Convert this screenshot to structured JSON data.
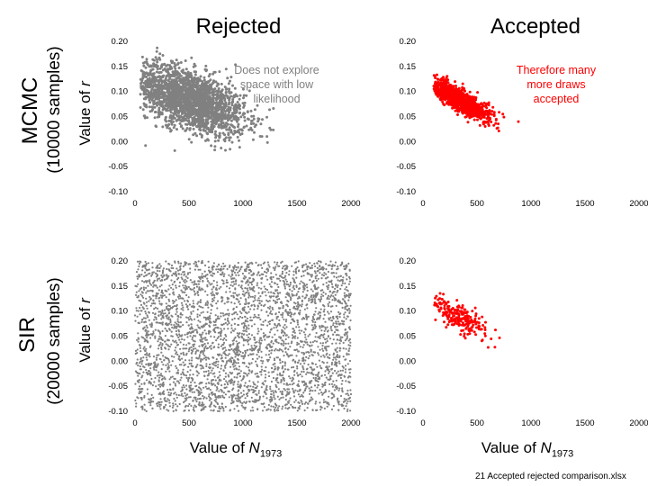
{
  "columns": {
    "rejected": "Rejected",
    "accepted": "Accepted"
  },
  "rows": {
    "mcmc": {
      "label": "MCMC",
      "samples": "(10000 samples)"
    },
    "sir": {
      "label": "SIR",
      "samples": "(20000 samples)"
    }
  },
  "axis": {
    "ylabel_prefix": "Value of ",
    "ylabel_var": "r",
    "xlabel_prefix": "Value of ",
    "xlabel_var": "N",
    "xlabel_sub": "1973"
  },
  "annotations": {
    "mcmc_rejected": [
      "Does not explore",
      "space with low",
      "likelihood"
    ],
    "mcmc_accepted": [
      "Therefore many",
      "more draws",
      "accepted"
    ]
  },
  "footer": "21 Accepted rejected comparison.xlsx",
  "colors": {
    "rejected": "#808080",
    "accepted": "#ff0000",
    "annot_rejected": "#808080",
    "annot_accepted": "#ff0000"
  },
  "chart_data": [
    {
      "id": "mcmc_rejected",
      "type": "scatter",
      "color": "#808080",
      "xlim": [
        0,
        2000
      ],
      "ylim": [
        -0.1,
        0.2
      ],
      "xticks": [
        "0",
        "500",
        "1000",
        "1500",
        "2000"
      ],
      "yticks": [
        "0.20",
        "0.15",
        "0.10",
        "0.05",
        "0.00",
        "-0.05",
        "-0.10"
      ],
      "cloud": {
        "n": 2200,
        "center": [
          500,
          0.085
        ],
        "spread": [
          260,
          0.035
        ],
        "correlation": -0.55,
        "x_range": [
          50,
          1320
        ],
        "y_range": [
          -0.02,
          0.19
        ]
      },
      "points": []
    },
    {
      "id": "mcmc_accepted",
      "type": "scatter",
      "color": "#ff0000",
      "xlim": [
        0,
        2000
      ],
      "ylim": [
        -0.1,
        0.2
      ],
      "xticks": [
        "0",
        "500",
        "1000",
        "1500",
        "2000"
      ],
      "yticks": [
        "0.20",
        "0.15",
        "0.10",
        "0.05",
        "0.00",
        "-0.05",
        "-0.10"
      ],
      "cloud": {
        "n": 900,
        "center": [
          330,
          0.085
        ],
        "spread": [
          160,
          0.022
        ],
        "correlation": -0.85,
        "x_range": [
          100,
          1080
        ],
        "y_range": [
          0.02,
          0.165
        ]
      },
      "points": []
    },
    {
      "id": "sir_rejected",
      "type": "scatter",
      "color": "#808080",
      "xlim": [
        0,
        2000
      ],
      "ylim": [
        -0.1,
        0.2
      ],
      "xticks": [
        "0",
        "500",
        "1000",
        "1500",
        "2000"
      ],
      "yticks": [
        "0.20",
        "0.15",
        "0.10",
        "0.05",
        "0.00",
        "-0.05",
        "-0.10"
      ],
      "cloud": {
        "n": 3600,
        "uniform": true,
        "x_range": [
          0,
          2000
        ],
        "y_range": [
          -0.1,
          0.2
        ]
      },
      "points": []
    },
    {
      "id": "sir_accepted",
      "type": "scatter",
      "color": "#ff0000",
      "xlim": [
        0,
        2000
      ],
      "ylim": [
        -0.1,
        0.2
      ],
      "xticks": [
        "0",
        "500",
        "1000",
        "1500",
        "2000"
      ],
      "yticks": [
        "0.20",
        "0.15",
        "0.10",
        "0.05",
        "0.00",
        "-0.05",
        "-0.10"
      ],
      "cloud": {
        "n": 220,
        "center": [
          320,
          0.09
        ],
        "spread": [
          150,
          0.022
        ],
        "correlation": -0.8,
        "x_range": [
          100,
          850
        ],
        "y_range": [
          0.025,
          0.15
        ]
      },
      "points": []
    }
  ]
}
